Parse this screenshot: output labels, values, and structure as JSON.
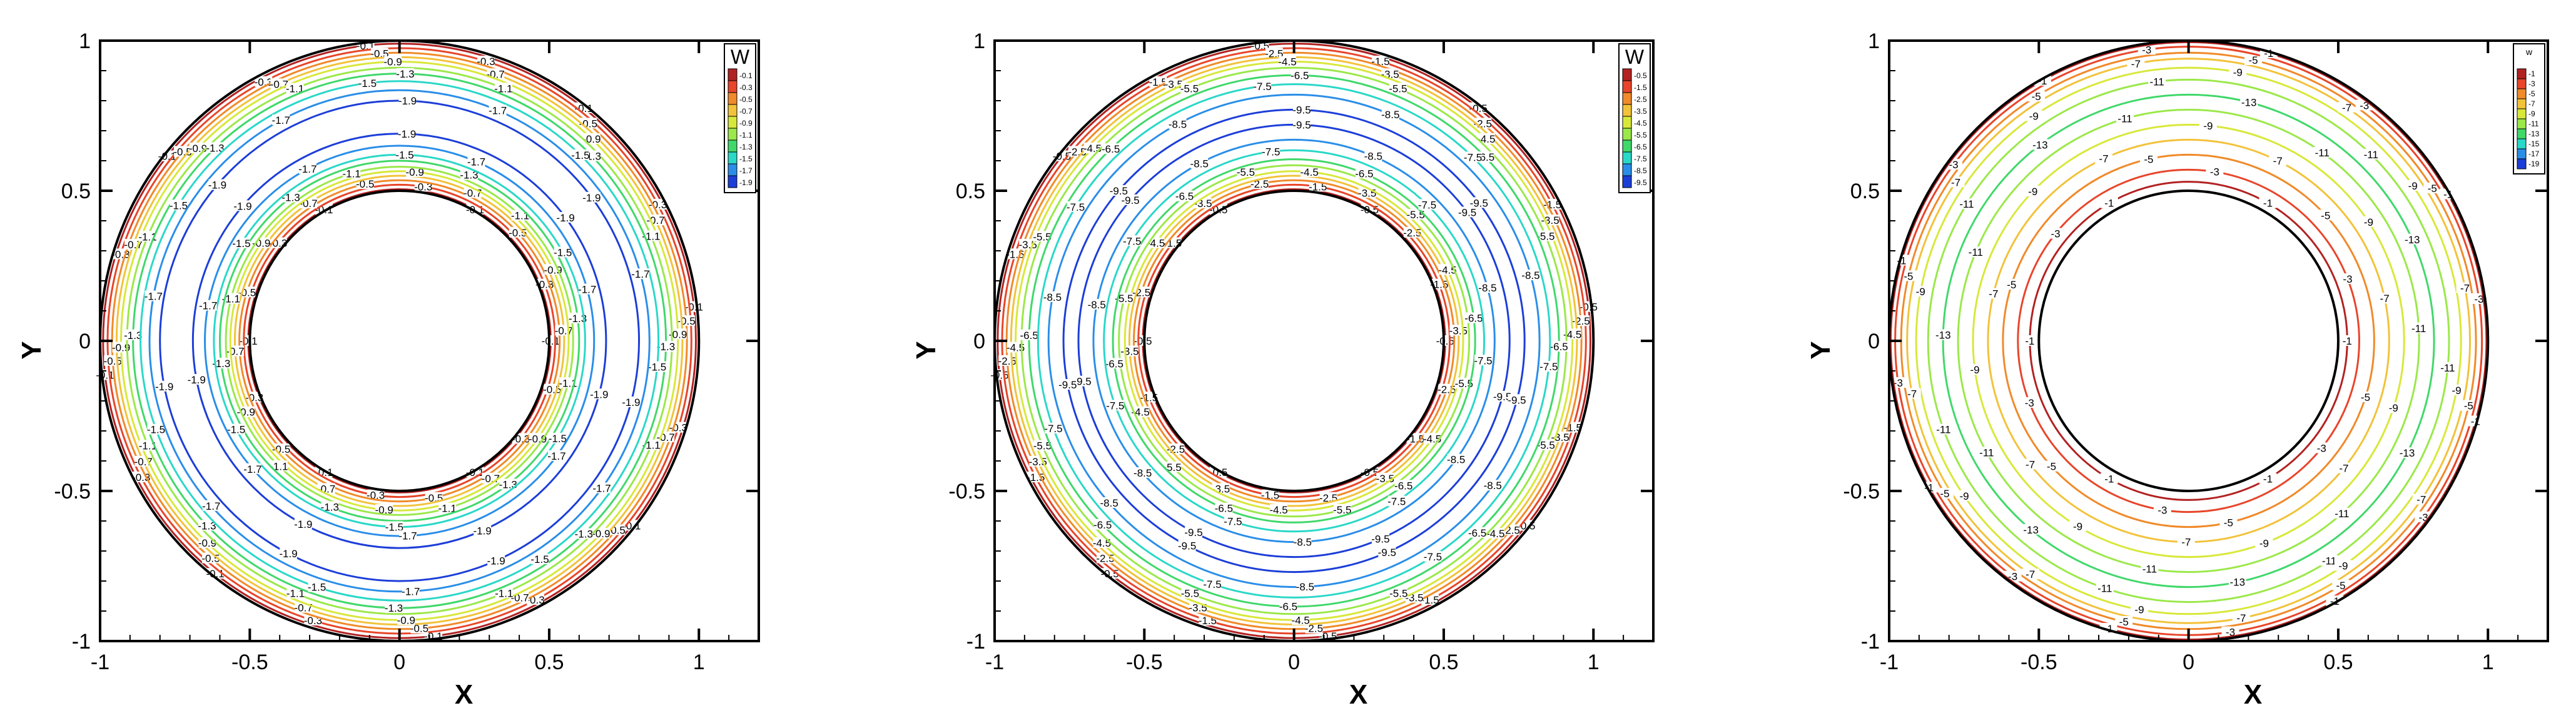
{
  "chart_data": [
    {
      "type": "contour",
      "xlabel": "X",
      "ylabel": "Y",
      "xlim": [
        -1,
        1.2
      ],
      "ylim": [
        -1,
        1
      ],
      "xticks": [
        "-1",
        "-0.5",
        "0",
        "0.5",
        "1"
      ],
      "yticks": [
        "-1",
        "-0.5",
        "0",
        "0.5",
        "1"
      ],
      "domain": {
        "inner_radius": 0.5,
        "outer_radius": 1
      },
      "legend": {
        "title": "W",
        "position": "top-right",
        "levels": [
          "-0.1",
          "-0.3",
          "-0.5",
          "-0.7",
          "-0.9",
          "-1.1",
          "-1.3",
          "-1.5",
          "-1.7",
          "-1.9"
        ]
      },
      "contours": [
        {
          "level": "-0.1",
          "radii": [
            0.505,
            0.99
          ]
        },
        {
          "level": "-0.3",
          "radii": [
            0.52,
            0.975
          ]
        },
        {
          "level": "-0.5",
          "radii": [
            0.535,
            0.96
          ]
        },
        {
          "level": "-0.7",
          "radii": [
            0.55,
            0.945
          ]
        },
        {
          "level": "-0.9",
          "radii": [
            0.565,
            0.93
          ]
        },
        {
          "level": "-1.1",
          "radii": [
            0.58,
            0.91
          ]
        },
        {
          "level": "-1.3",
          "radii": [
            0.6,
            0.89
          ]
        },
        {
          "level": "-1.5",
          "radii": [
            0.62,
            0.865
          ]
        },
        {
          "level": "-1.7",
          "radii": [
            0.65,
            0.835
          ]
        },
        {
          "level": "-1.9",
          "radii": [
            0.69,
            0.8
          ]
        }
      ]
    },
    {
      "type": "contour",
      "xlabel": "X",
      "ylabel": "Y",
      "xlim": [
        -1,
        1.2
      ],
      "ylim": [
        -1,
        1
      ],
      "xticks": [
        "-1",
        "-0.5",
        "0",
        "0.5",
        "1"
      ],
      "yticks": [
        "-1",
        "-0.5",
        "0",
        "0.5",
        "1"
      ],
      "domain": {
        "inner_radius": 0.5,
        "outer_radius": 1
      },
      "legend": {
        "title": "W",
        "position": "top-right",
        "levels": [
          "-0.5",
          "-1.5",
          "-2.5",
          "-3.5",
          "-4.5",
          "-5.5",
          "-6.5",
          "-7.5",
          "-8.5",
          "-9.5"
        ]
      },
      "contours": [
        {
          "level": "-0.5",
          "radii": [
            0.505,
            0.99
          ]
        },
        {
          "level": "-1.5",
          "radii": [
            0.52,
            0.975
          ]
        },
        {
          "level": "-2.5",
          "radii": [
            0.535,
            0.96
          ]
        },
        {
          "level": "-3.5",
          "radii": [
            0.55,
            0.945
          ]
        },
        {
          "level": "-4.5",
          "radii": [
            0.565,
            0.93
          ]
        },
        {
          "level": "-5.5",
          "radii": [
            0.585,
            0.91
          ]
        },
        {
          "level": "-6.5",
          "radii": [
            0.605,
            0.885
          ]
        },
        {
          "level": "-7.5",
          "radii": [
            0.635,
            0.855
          ]
        },
        {
          "level": "-8.5",
          "radii": [
            0.67,
            0.82
          ]
        },
        {
          "level": "-9.5",
          "radii": [
            0.72,
            0.77
          ]
        }
      ]
    },
    {
      "type": "contour",
      "xlabel": "X",
      "ylabel": "Y",
      "xlim": [
        -1,
        1.2
      ],
      "ylim": [
        -1,
        1
      ],
      "xticks": [
        "-1",
        "-0.5",
        "0",
        "0.5",
        "1"
      ],
      "yticks": [
        "-1",
        "-0.5",
        "0",
        "0.5",
        "1"
      ],
      "domain": {
        "inner_radius": 0.5,
        "outer_radius": 1
      },
      "legend": {
        "title": "w",
        "position": "top-right",
        "levels": [
          "-1",
          "-3",
          "-5",
          "-7",
          "-9",
          "-11",
          "-13",
          "-15",
          "-17",
          "-19"
        ]
      },
      "contours": [
        {
          "level": "-1",
          "radii": [
            0.53
          ]
        },
        {
          "level": "-3",
          "radii": [
            0.57
          ]
        },
        {
          "level": "-5",
          "radii": [
            0.62
          ]
        },
        {
          "level": "-7",
          "radii": [
            0.67
          ]
        },
        {
          "level": "-9",
          "radii": [
            0.72
          ]
        },
        {
          "level": "-11",
          "radii": [
            0.77
          ]
        },
        {
          "level": "-13",
          "radii": [
            0.82
          ]
        },
        {
          "level": "-11",
          "radii": [
            0.87
          ]
        },
        {
          "level": "-9",
          "radii": [
            0.91
          ]
        },
        {
          "level": "-7",
          "radii": [
            0.94
          ]
        },
        {
          "level": "-5",
          "radii": [
            0.96
          ]
        },
        {
          "level": "-3",
          "radii": [
            0.98
          ]
        },
        {
          "level": "-1",
          "radii": [
            0.995
          ]
        }
      ]
    }
  ],
  "colors": {
    "palette": [
      "#b22222",
      "#e8452a",
      "#f08a2a",
      "#f2c23a",
      "#d8e83a",
      "#9be84a",
      "#40d86a",
      "#2ad8c8",
      "#2a8ee8",
      "#1c3ed8"
    ],
    "boundary": "#000000"
  }
}
